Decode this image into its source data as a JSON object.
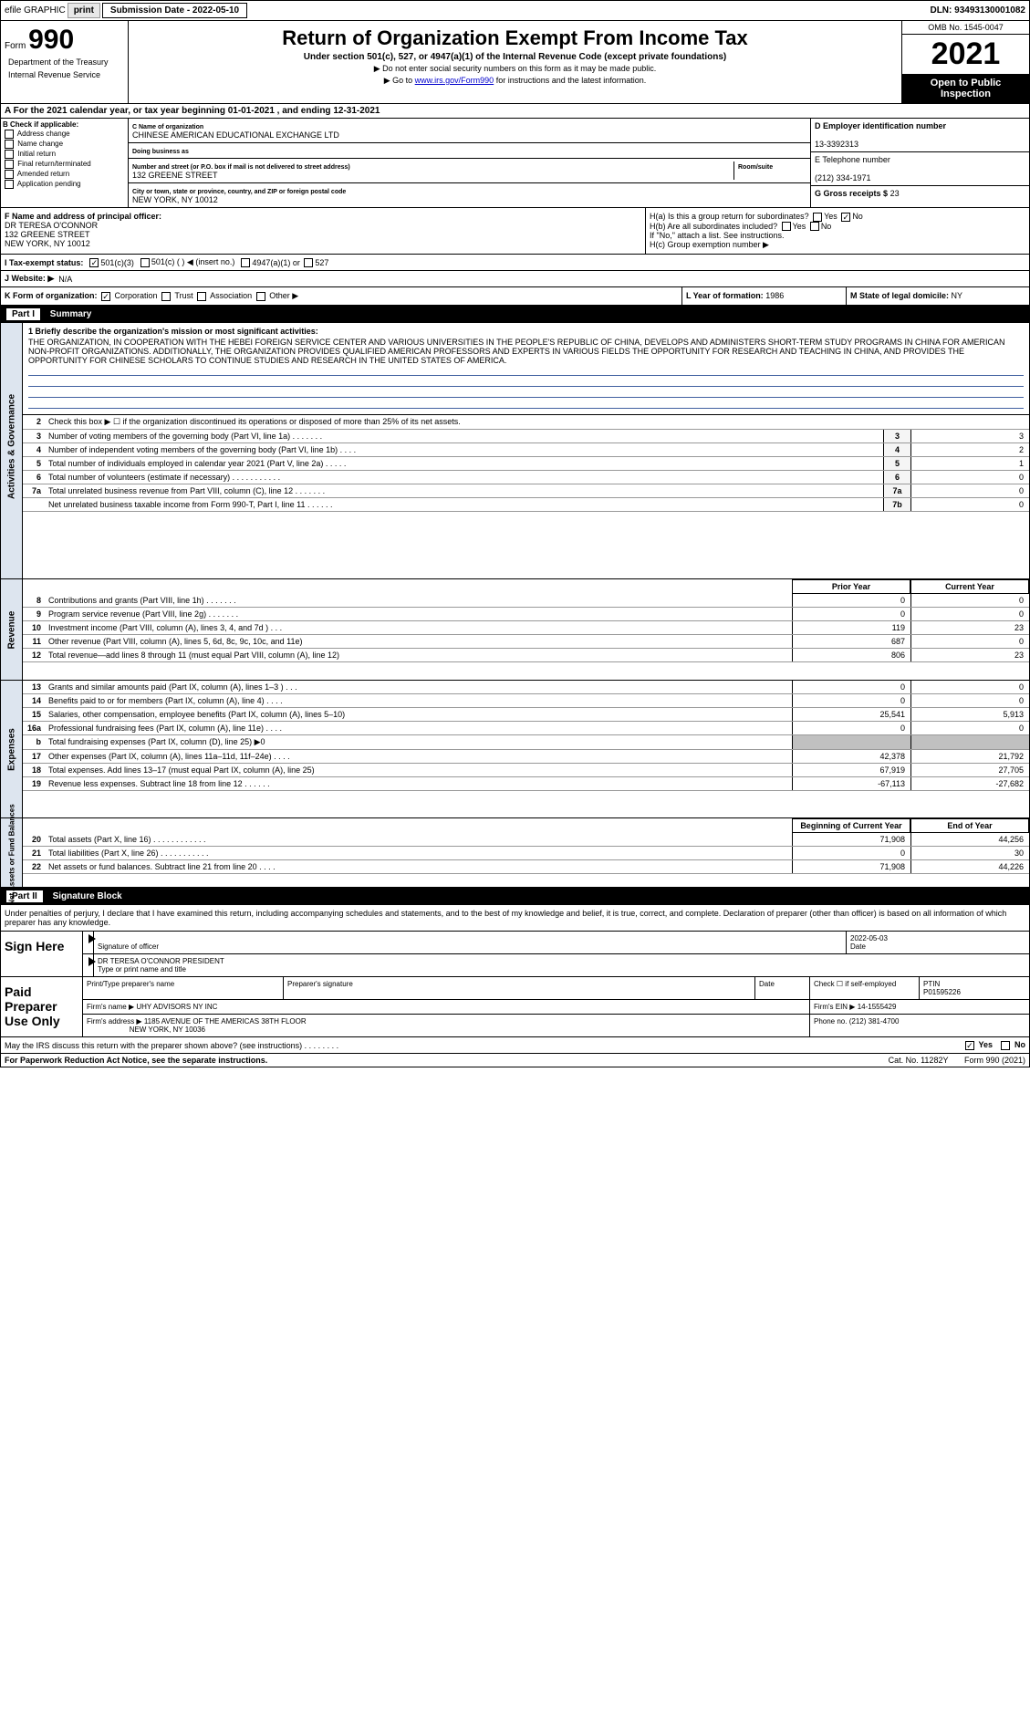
{
  "topbar": {
    "efile_label": "efile GRAPHIC",
    "print_btn": "print",
    "subdate_label": "Submission Date - 2022-05-10",
    "dln": "DLN: 93493130001082"
  },
  "header": {
    "form_label": "Form",
    "form_num": "990",
    "title": "Return of Organization Exempt From Income Tax",
    "subtitle": "Under section 501(c), 527, or 4947(a)(1) of the Internal Revenue Code (except private foundations)",
    "note1": "▶ Do not enter social security numbers on this form as it may be made public.",
    "note2_pre": "▶ Go to ",
    "note2_link": "www.irs.gov/Form990",
    "note2_post": " for instructions and the latest information.",
    "omb": "OMB No. 1545-0047",
    "year": "2021",
    "open_public": "Open to Public Inspection",
    "dept": "Department of the Treasury",
    "irs": "Internal Revenue Service"
  },
  "calyear": {
    "line_a": "A For the 2021 calendar year, or tax year beginning 01-01-2021  , and ending 12-31-2021"
  },
  "colb": {
    "header": "B Check if applicable:",
    "c1": "Address change",
    "c2": "Name change",
    "c3": "Initial return",
    "c4": "Final return/terminated",
    "c5": "Amended return",
    "c6": "Application pending"
  },
  "colc": {
    "name_lbl": "C Name of organization",
    "name_val": "CHINESE AMERICAN EDUCATIONAL EXCHANGE LTD",
    "dba_lbl": "Doing business as",
    "dba_val": "",
    "addr_lbl": "Number and street (or P.O. box if mail is not delivered to street address)",
    "addr_val": "132 GREENE STREET",
    "room_lbl": "Room/suite",
    "city_lbl": "City or town, state or province, country, and ZIP or foreign postal code",
    "city_val": "NEW YORK, NY  10012"
  },
  "cold": {
    "ein_lbl": "D Employer identification number",
    "ein_val": "13-3392313",
    "tel_lbl": "E Telephone number",
    "tel_val": "(212) 334-1971",
    "gross_lbl": "G Gross receipts $",
    "gross_val": "23"
  },
  "f_block": {
    "f_lbl": "F  Name and address of principal officer:",
    "f_name": "DR TERESA O'CONNOR",
    "f_addr1": "132 GREENE STREET",
    "f_addr2": "NEW YORK, NY  10012"
  },
  "h_block": {
    "ha_lbl": "H(a)  Is this a group return for subordinates?",
    "hb_lbl": "H(b)  Are all subordinates included?",
    "hb_note": "If \"No,\" attach a list. See instructions.",
    "hc_lbl": "H(c)  Group exemption number ▶",
    "yes": "Yes",
    "no": "No"
  },
  "row_i": {
    "label": "I  Tax-exempt status:",
    "o1": "501(c)(3)",
    "o2": "501(c) (  ) ◀ (insert no.)",
    "o3": "4947(a)(1) or",
    "o4": "527"
  },
  "row_j": {
    "label": "J  Website: ▶",
    "val": "N/A"
  },
  "row_k": {
    "k_label": "K Form of organization:",
    "k1": "Corporation",
    "k2": "Trust",
    "k3": "Association",
    "k4": "Other ▶",
    "l_label": "L Year of formation:",
    "l_val": "1986",
    "m_label": "M State of legal domicile:",
    "m_val": "NY"
  },
  "part1": {
    "header_num": "Part I",
    "header_title": "Summary",
    "sidebars": {
      "gov": "Activities & Governance",
      "rev": "Revenue",
      "exp": "Expenses",
      "net": "Net Assets or Fund Balances"
    },
    "line1_lbl": "1  Briefly describe the organization's mission or most significant activities:",
    "line1_val": "THE ORGANIZATION, IN COOPERATION WITH THE HEBEI FOREIGN SERVICE CENTER AND VARIOUS UNIVERSITIES IN THE PEOPLE'S REPUBLIC OF CHINA, DEVELOPS AND ADMINISTERS SHORT-TERM STUDY PROGRAMS IN CHINA FOR AMERICAN NON-PROFIT ORGANIZATIONS. ADDITIONALLY, THE ORGANIZATION PROVIDES QUALIFIED AMERICAN PROFESSORS AND EXPERTS IN VARIOUS FIELDS THE OPPORTUNITY FOR RESEARCH AND TEACHING IN CHINA, AND PROVIDES THE OPPORTUNITY FOR CHINESE SCHOLARS TO CONTINUE STUDIES AND RESEARCH IN THE UNITED STATES OF AMERICA.",
    "line2": "Check this box ▶ ☐ if the organization discontinued its operations or disposed of more than 25% of its net assets.",
    "prior_year": "Prior Year",
    "current_year": "Current Year",
    "beg_year": "Beginning of Current Year",
    "end_year": "End of Year",
    "lines_single": [
      {
        "n": "3",
        "d": "Number of voting members of the governing body (Part VI, line 1a)   .    .    .    .    .    .    .",
        "box": "3",
        "v": "3"
      },
      {
        "n": "4",
        "d": "Number of independent voting members of the governing body (Part VI, line 1b)    .    .    .    .",
        "box": "4",
        "v": "2"
      },
      {
        "n": "5",
        "d": "Total number of individuals employed in calendar year 2021 (Part V, line 2a)   .    .    .    .    .",
        "box": "5",
        "v": "1"
      },
      {
        "n": "6",
        "d": "Total number of volunteers (estimate if necessary)    .    .    .    .    .    .    .    .    .    .    .",
        "box": "6",
        "v": "0"
      },
      {
        "n": "7a",
        "d": "Total unrelated business revenue from Part VIII, column (C), line 12   .    .    .    .    .    .    .",
        "box": "7a",
        "v": "0"
      },
      {
        "n": "",
        "d": "Net unrelated business taxable income from Form 990-T, Part I, line 11    .    .    .    .    .    .",
        "box": "7b",
        "v": "0"
      }
    ],
    "lines_rev": [
      {
        "n": "8",
        "d": "Contributions and grants (Part VIII, line 1h)   .    .    .    .    .    .    .",
        "py": "0",
        "cy": "0"
      },
      {
        "n": "9",
        "d": "Program service revenue (Part VIII, line 2g)    .    .    .    .    .    .    .",
        "py": "0",
        "cy": "0"
      },
      {
        "n": "10",
        "d": "Investment income (Part VIII, column (A), lines 3, 4, and 7d )    .    .    .",
        "py": "119",
        "cy": "23"
      },
      {
        "n": "11",
        "d": "Other revenue (Part VIII, column (A), lines 5, 6d, 8c, 9c, 10c, and 11e)",
        "py": "687",
        "cy": "0"
      },
      {
        "n": "12",
        "d": "Total revenue—add lines 8 through 11 (must equal Part VIII, column (A), line 12)",
        "py": "806",
        "cy": "23"
      }
    ],
    "lines_exp": [
      {
        "n": "13",
        "d": "Grants and similar amounts paid (Part IX, column (A), lines 1–3 )   .    .    .",
        "py": "0",
        "cy": "0"
      },
      {
        "n": "14",
        "d": "Benefits paid to or for members (Part IX, column (A), line 4)   .    .    .    .",
        "py": "0",
        "cy": "0"
      },
      {
        "n": "15",
        "d": "Salaries, other compensation, employee benefits (Part IX, column (A), lines 5–10)",
        "py": "25,541",
        "cy": "5,913"
      },
      {
        "n": "16a",
        "d": "Professional fundraising fees (Part IX, column (A), line 11e)   .    .    .    .",
        "py": "0",
        "cy": "0"
      },
      {
        "n": "b",
        "d": "Total fundraising expenses (Part IX, column (D), line 25) ▶0",
        "py": "",
        "cy": "",
        "shaded": true
      },
      {
        "n": "17",
        "d": "Other expenses (Part IX, column (A), lines 11a–11d, 11f–24e)    .    .    .    .",
        "py": "42,378",
        "cy": "21,792"
      },
      {
        "n": "18",
        "d": "Total expenses. Add lines 13–17 (must equal Part IX, column (A), line 25)",
        "py": "67,919",
        "cy": "27,705"
      },
      {
        "n": "19",
        "d": "Revenue less expenses. Subtract line 18 from line 12    .    .    .    .    .    .",
        "py": "-67,113",
        "cy": "-27,682"
      }
    ],
    "lines_net": [
      {
        "n": "20",
        "d": "Total assets (Part X, line 16)    .    .    .    .    .    .    .    .    .    .    .    .",
        "py": "71,908",
        "cy": "44,256"
      },
      {
        "n": "21",
        "d": "Total liabilities (Part X, line 26)   .    .    .    .    .    .    .    .    .    .    .",
        "py": "0",
        "cy": "30"
      },
      {
        "n": "22",
        "d": "Net assets or fund balances. Subtract line 21 from line 20    .    .    .    .",
        "py": "71,908",
        "cy": "44,226"
      }
    ]
  },
  "part2": {
    "header_num": "Part II",
    "header_title": "Signature Block",
    "perjury": "Under penalties of perjury, I declare that I have examined this return, including accompanying schedules and statements, and to the best of my knowledge and belief, it is true, correct, and complete. Declaration of preparer (other than officer) is based on all information of which preparer has any knowledge.",
    "sign_here": "Sign Here",
    "sig_officer_lbl": "Signature of officer",
    "sig_date": "2022-05-03",
    "date_lbl": "Date",
    "sig_name": "DR TERESA O'CONNOR PRESIDENT",
    "sig_name_lbl": "Type or print name and title",
    "paid_prep": "Paid Preparer Use Only",
    "prep_name_lbl": "Print/Type preparer's name",
    "prep_sig_lbl": "Preparer's signature",
    "prep_date_lbl": "Date",
    "check_self": "Check ☐ if self-employed",
    "ptin_lbl": "PTIN",
    "ptin_val": "P01595226",
    "firm_name_lbl": "Firm's name    ▶",
    "firm_name": "UHY ADVISORS NY INC",
    "firm_ein_lbl": "Firm's EIN ▶",
    "firm_ein": "14-1555429",
    "firm_addr_lbl": "Firm's address ▶",
    "firm_addr": "1185 AVENUE OF THE AMERICAS 38TH FLOOR",
    "firm_city": "NEW YORK, NY  10036",
    "phone_lbl": "Phone no.",
    "phone": "(212) 381-4700",
    "may_irs": "May the IRS discuss this return with the preparer shown above? (see instructions)    .    .    .    .    .    .    .    .",
    "yes": "Yes",
    "no": "No"
  },
  "footer": {
    "paperwork": "For Paperwork Reduction Act Notice, see the separate instructions.",
    "cat": "Cat. No. 11282Y",
    "form": "Form 990 (2021)"
  }
}
